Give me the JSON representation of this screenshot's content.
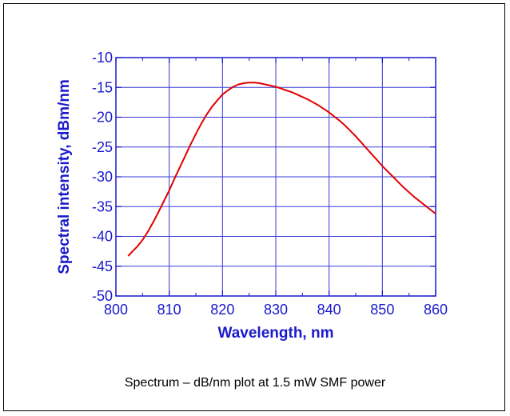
{
  "chart_data": {
    "type": "line",
    "xlabel": "Wavelength, nm",
    "ylabel": "Spectral intensity, dBm/nm",
    "xlim": [
      800,
      860
    ],
    "ylim": [
      -50,
      -10
    ],
    "x_ticks": [
      "800",
      "810",
      "820",
      "830",
      "840",
      "850",
      "860"
    ],
    "y_ticks": [
      "-50",
      "-45",
      "-40",
      "-35",
      "-30",
      "-25",
      "-20",
      "-15",
      "-10"
    ],
    "grid": true,
    "series": [
      {
        "color": "#e00000",
        "x": [
          802.3,
          803,
          804,
          805,
          806,
          807,
          808,
          809,
          810,
          811,
          812,
          813,
          814,
          815,
          816,
          817,
          818,
          819,
          820,
          821,
          822,
          823,
          824,
          825,
          826,
          827,
          828,
          829,
          830,
          831,
          832,
          833,
          834,
          835,
          836,
          837,
          838,
          839,
          840,
          841,
          842,
          843,
          844,
          845,
          846,
          847,
          848,
          849,
          850,
          851,
          852,
          853,
          854,
          855,
          856,
          857,
          858,
          859,
          860
        ],
        "y": [
          -43.3,
          -42.6,
          -41.7,
          -40.6,
          -39.2,
          -37.6,
          -35.9,
          -34.1,
          -32.3,
          -30.3,
          -28.4,
          -26.5,
          -24.6,
          -22.8,
          -21.1,
          -19.6,
          -18.3,
          -17.2,
          -16.2,
          -15.5,
          -14.9,
          -14.5,
          -14.3,
          -14.2,
          -14.2,
          -14.3,
          -14.5,
          -14.7,
          -14.9,
          -15.2,
          -15.5,
          -15.8,
          -16.2,
          -16.6,
          -17.0,
          -17.5,
          -18.0,
          -18.6,
          -19.2,
          -19.9,
          -20.6,
          -21.4,
          -22.3,
          -23.2,
          -24.2,
          -25.2,
          -26.2,
          -27.2,
          -28.2,
          -29.1,
          -30.0,
          -30.9,
          -31.8,
          -32.6,
          -33.4,
          -34.1,
          -34.8,
          -35.5,
          -36.2
        ]
      }
    ]
  },
  "caption": "Spectrum – dB/nm plot at 1.5 mW SMF power",
  "colors": {
    "axis": "#1a1acc",
    "grid": "#3a3ad8",
    "line": "#e00000",
    "label": "#1a1acc"
  }
}
